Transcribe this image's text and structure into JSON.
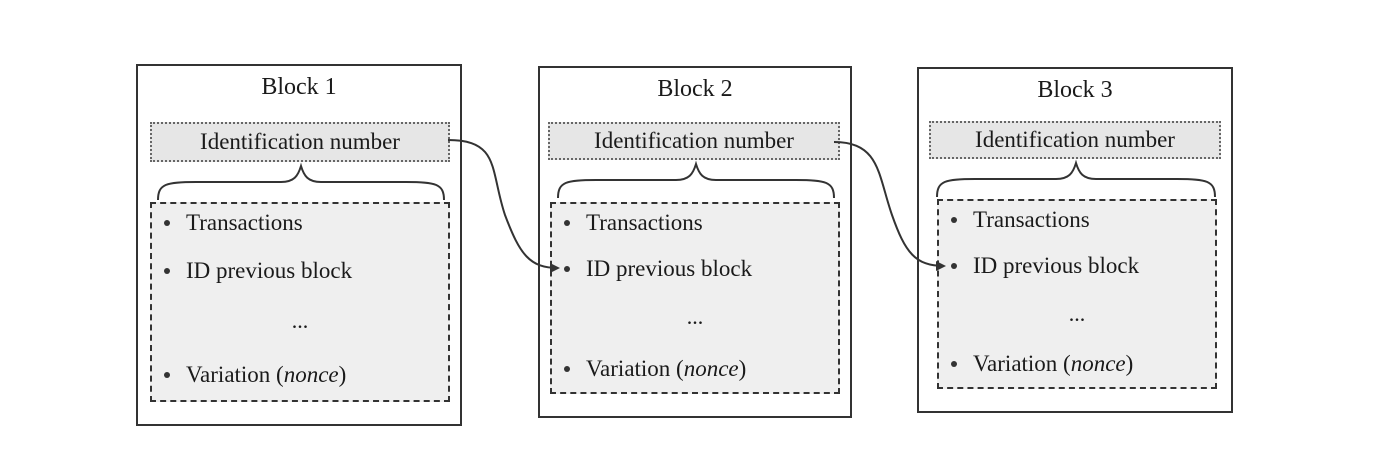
{
  "blocks": [
    {
      "title": "Block 1",
      "id_label": "Identification number",
      "items": {
        "transactions": "Transactions",
        "previous": "ID previous block",
        "ellipsis": "...",
        "variation_prefix": "Variation (",
        "variation_term": "nonce",
        "variation_suffix": ")"
      }
    },
    {
      "title": "Block 2",
      "id_label": "Identification number",
      "items": {
        "transactions": "Transactions",
        "previous": "ID previous block",
        "ellipsis": "...",
        "variation_prefix": "Variation (",
        "variation_term": "nonce",
        "variation_suffix": ")"
      }
    },
    {
      "title": "Block 3",
      "id_label": "Identification number",
      "items": {
        "transactions": "Transactions",
        "previous": "ID previous block",
        "ellipsis": "...",
        "variation_prefix": "Variation (",
        "variation_term": "nonce",
        "variation_suffix": ")"
      }
    }
  ],
  "links": [
    {
      "from": "Block 1",
      "to": "Block 2"
    },
    {
      "from": "Block 2",
      "to": "Block 3"
    }
  ]
}
